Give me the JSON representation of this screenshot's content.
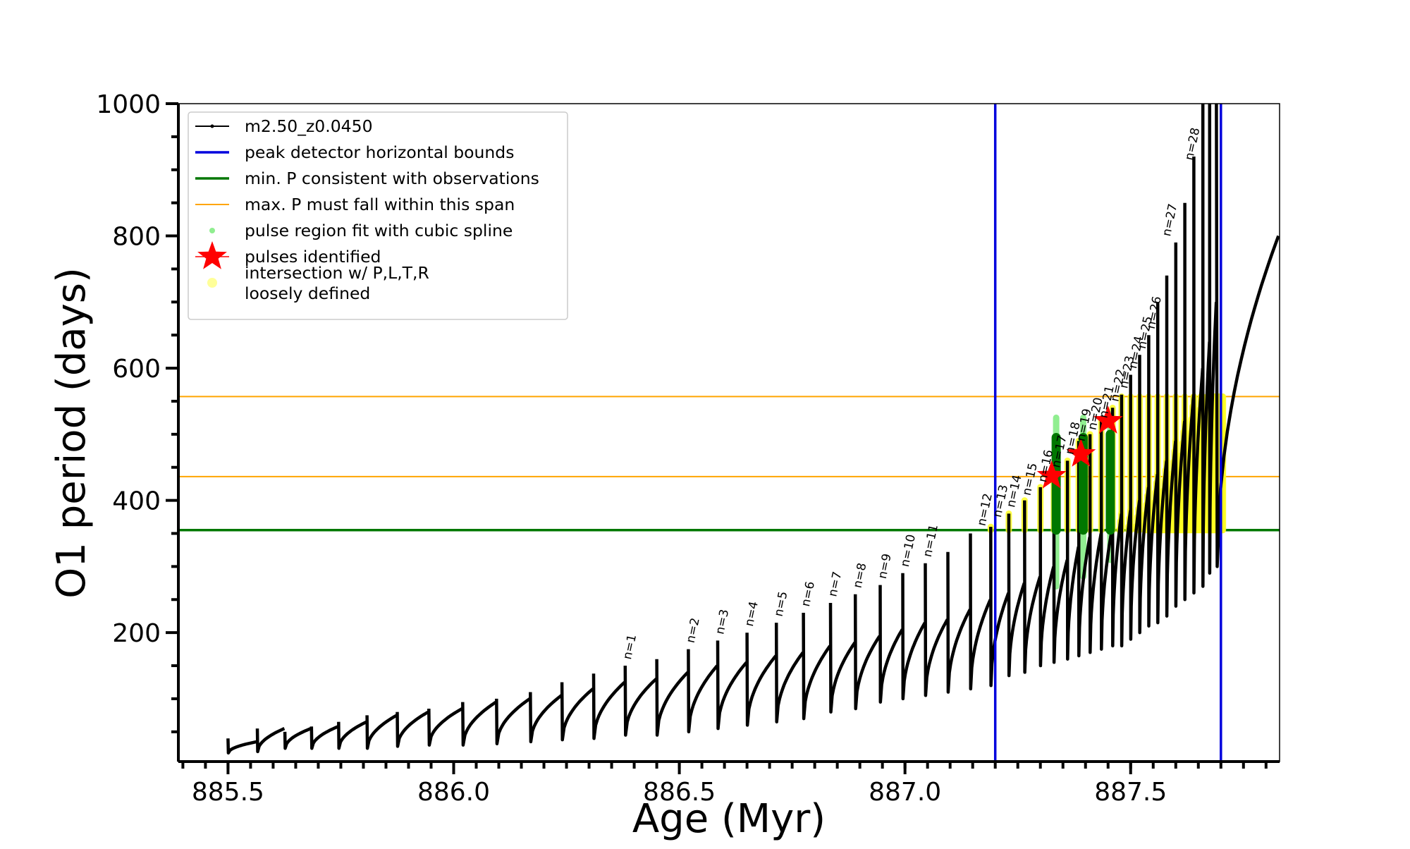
{
  "chart_data": {
    "type": "line",
    "xlabel": "Age (Myr)",
    "ylabel": "O1 period (days)",
    "xlim": [
      885.39,
      887.83
    ],
    "ylim": [
      5,
      1000
    ],
    "x_ticks": [
      885.5,
      886.0,
      886.5,
      887.0,
      887.5
    ],
    "x_tick_labels": [
      "885.5",
      "886.0",
      "886.5",
      "887.0",
      "887.5"
    ],
    "y_ticks": [
      200,
      400,
      600,
      800,
      1000
    ],
    "y_tick_labels": [
      "200",
      "400",
      "600",
      "800",
      "1000"
    ],
    "grid": false,
    "legend_position": "top-left",
    "legend": [
      {
        "label": "m2.50_z0.0450",
        "style": "line-dot",
        "color": "#000000"
      },
      {
        "label": "peak detector horizontal bounds",
        "style": "line",
        "color": "#0000dd"
      },
      {
        "label": "min. P consistent with observations",
        "style": "line",
        "color": "#007700"
      },
      {
        "label": "max. P must fall within this span",
        "style": "thin-line",
        "color": "#ffa500"
      },
      {
        "label": "pulse region fit with cubic spline",
        "style": "dot",
        "color": "#90ee90"
      },
      {
        "label": "pulses identified",
        "style": "star",
        "color": "#ff0000"
      },
      {
        "label": "intersection w/ P,L,T,R",
        "label2": "loosely defined",
        "style": "dot",
        "color": "#ffff99"
      }
    ],
    "vertical_lines": [
      {
        "x": 887.2,
        "color": "#0000dd"
      },
      {
        "x": 887.7,
        "color": "#0000dd"
      }
    ],
    "horizontal_lines": [
      {
        "y": 355,
        "color": "#007700"
      },
      {
        "y": 436,
        "color": "#ffa500"
      },
      {
        "y": 557,
        "color": "#ffa500"
      }
    ],
    "series": [
      {
        "name": "m2.50_z0.0450",
        "pulse_starts": [
          885.5,
          885.565,
          885.626,
          885.685,
          885.745,
          885.808,
          885.875,
          885.945,
          886.02,
          886.095,
          886.17,
          886.24,
          886.31,
          886.38,
          886.45,
          886.52,
          886.585,
          886.65,
          886.715,
          886.775,
          886.835,
          886.89,
          886.945,
          886.995,
          887.045,
          887.095,
          887.145,
          887.19,
          887.23,
          887.265,
          887.3,
          887.33,
          887.36,
          887.385,
          887.41,
          887.435,
          887.46,
          887.48,
          887.5,
          887.52,
          887.54,
          887.56,
          887.58,
          887.6,
          887.62,
          887.64,
          887.66,
          887.675,
          887.69
        ],
        "pulse_min_period": [
          18,
          20,
          25,
          25,
          25,
          25,
          28,
          30,
          30,
          32,
          35,
          38,
          40,
          45,
          45,
          50,
          55,
          60,
          65,
          70,
          80,
          85,
          95,
          100,
          105,
          110,
          115,
          120,
          135,
          140,
          150,
          155,
          160,
          165,
          170,
          175,
          180,
          180,
          190,
          200,
          210,
          215,
          225,
          240,
          250,
          260,
          270,
          290,
          300
        ],
        "pulse_peak_period": [
          35,
          55,
          55,
          58,
          65,
          75,
          80,
          85,
          95,
          100,
          105,
          115,
          125,
          130,
          140,
          150,
          155,
          165,
          170,
          180,
          185,
          195,
          205,
          215,
          220,
          235,
          250,
          260,
          275,
          285,
          300,
          310,
          330,
          345,
          350,
          360,
          380,
          385,
          400,
          420,
          440,
          460,
          490,
          520,
          560,
          600,
          640,
          700,
          800
        ],
        "pulse_spike_period": [
          40,
          55,
          50,
          58,
          65,
          75,
          80,
          85,
          95,
          100,
          110,
          125,
          138,
          150,
          160,
          175,
          188,
          200,
          215,
          230,
          245,
          258,
          272,
          290,
          305,
          322,
          350,
          360,
          380,
          400,
          420,
          440,
          460,
          490,
          500,
          520,
          540,
          560,
          590,
          620,
          650,
          700,
          740,
          790,
          850,
          920,
          1000,
          1000,
          1000
        ]
      }
    ],
    "pulse_labels": [
      {
        "text": "n=1",
        "x": 886.38,
        "y": 150
      },
      {
        "text": "n=2",
        "x": 886.52,
        "y": 175
      },
      {
        "text": "n=3",
        "x": 886.585,
        "y": 188
      },
      {
        "text": "n=4",
        "x": 886.65,
        "y": 200
      },
      {
        "text": "n=5",
        "x": 886.715,
        "y": 215
      },
      {
        "text": "n=6",
        "x": 886.775,
        "y": 230
      },
      {
        "text": "n=7",
        "x": 886.835,
        "y": 245
      },
      {
        "text": "n=8",
        "x": 886.89,
        "y": 258
      },
      {
        "text": "n=9",
        "x": 886.945,
        "y": 272
      },
      {
        "text": "n=10",
        "x": 886.995,
        "y": 290
      },
      {
        "text": "n=11",
        "x": 887.045,
        "y": 305
      },
      {
        "text": "n=12",
        "x": 887.165,
        "y": 352
      },
      {
        "text": "n=13",
        "x": 887.2,
        "y": 365
      },
      {
        "text": "n=14",
        "x": 887.23,
        "y": 380
      },
      {
        "text": "n=15",
        "x": 887.265,
        "y": 398
      },
      {
        "text": "n=16",
        "x": 887.3,
        "y": 418
      },
      {
        "text": "n=17",
        "x": 887.33,
        "y": 440
      },
      {
        "text": "n=18",
        "x": 887.36,
        "y": 460
      },
      {
        "text": "n=19",
        "x": 887.385,
        "y": 480
      },
      {
        "text": "n=20",
        "x": 887.41,
        "y": 497
      },
      {
        "text": "n=21",
        "x": 887.435,
        "y": 515
      },
      {
        "text": "n=22",
        "x": 887.46,
        "y": 540
      },
      {
        "text": "n=23",
        "x": 887.48,
        "y": 560
      },
      {
        "text": "n=24",
        "x": 887.5,
        "y": 590
      },
      {
        "text": "n=25",
        "x": 887.52,
        "y": 620
      },
      {
        "text": "n=26",
        "x": 887.54,
        "y": 650
      },
      {
        "text": "n=27",
        "x": 887.575,
        "y": 790
      },
      {
        "text": "n=28",
        "x": 887.625,
        "y": 905
      }
    ],
    "pulses_identified": [
      {
        "x": 887.325,
        "y": 437
      },
      {
        "x": 887.39,
        "y": 470
      },
      {
        "x": 887.45,
        "y": 520
      }
    ],
    "spline_fit_regions": [
      {
        "x": 887.335,
        "y_min": 270,
        "y_max": 525
      },
      {
        "x": 887.395,
        "y_min": 285,
        "y_max": 525
      },
      {
        "x": 887.455,
        "y_min": 310,
        "y_max": 530
      }
    ],
    "observation_fits": [
      {
        "x": 887.335,
        "y_min": 355,
        "y_max": 495
      },
      {
        "x": 887.395,
        "y_min": 355,
        "y_max": 495
      },
      {
        "x": 887.455,
        "y_min": 355,
        "y_max": 500
      }
    ]
  }
}
